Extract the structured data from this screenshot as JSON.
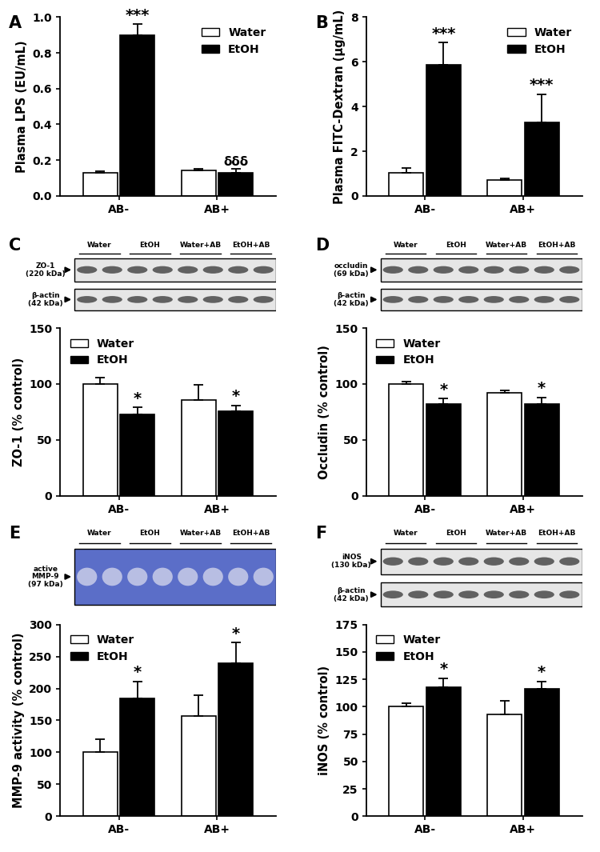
{
  "chart_data": [
    {
      "type": "bar",
      "title": "A",
      "categories": [
        "AB-",
        "AB+"
      ],
      "ylabel": "Plasma LPS (EU/mL)",
      "ylim": [
        0,
        1.0
      ],
      "yticks": [
        {
          "value": 0,
          "label": "0.0"
        },
        {
          "value": 0.2,
          "label": "0.2"
        },
        {
          "value": 0.4,
          "label": "0.4"
        },
        {
          "value": 0.6,
          "label": "0.6"
        },
        {
          "value": 0.8,
          "label": "0.8"
        },
        {
          "value": 1.0,
          "label": "1.0"
        }
      ],
      "legend": "upper right",
      "series": [
        {
          "name": "Water",
          "color": "#ffffff",
          "values": [
            0.13,
            0.145
          ],
          "errors": [
            0.01,
            0.005
          ]
        },
        {
          "name": "EtOH",
          "color": "#000000",
          "values": [
            0.9,
            0.13
          ],
          "errors": [
            0.06,
            0.02
          ]
        }
      ],
      "annotations": [
        {
          "text": "***",
          "series": "EtOH",
          "category": "AB-"
        },
        {
          "text": "δδδ",
          "series": "EtOH",
          "category": "AB+"
        }
      ]
    },
    {
      "type": "bar",
      "title": "B",
      "categories": [
        "AB-",
        "AB+"
      ],
      "ylabel": "Plasma FITC-Dextran (µg/mL)",
      "ylim": [
        0,
        8
      ],
      "yticks": [
        0,
        2,
        4,
        6,
        8
      ],
      "legend": "upper right",
      "series": [
        {
          "name": "Water",
          "color": "#ffffff",
          "values": [
            1.05,
            0.72
          ],
          "errors": [
            0.2,
            0.08
          ]
        },
        {
          "name": "EtOH",
          "color": "#000000",
          "values": [
            5.85,
            3.3
          ],
          "errors": [
            1.0,
            1.25
          ]
        }
      ],
      "annotations": [
        {
          "text": "***",
          "series": "EtOH",
          "category": "AB-"
        },
        {
          "text": "***",
          "series": "EtOH",
          "category": "AB+"
        }
      ]
    },
    {
      "type": "bar",
      "title": "C",
      "categories": [
        "AB-",
        "AB+"
      ],
      "ylabel": "ZO-1 (% control)",
      "ylim": [
        0,
        150
      ],
      "yticks": [
        0,
        50,
        100,
        150
      ],
      "legend": "upper left",
      "series": [
        {
          "name": "Water",
          "color": "#ffffff",
          "values": [
            100,
            86
          ],
          "errors": [
            6,
            13
          ]
        },
        {
          "name": "EtOH",
          "color": "#000000",
          "values": [
            73,
            76
          ],
          "errors": [
            6,
            5
          ]
        }
      ],
      "annotations": [
        {
          "text": "*",
          "series": "EtOH",
          "category": "AB-"
        },
        {
          "text": "*",
          "series": "EtOH",
          "category": "AB+"
        }
      ],
      "blot": {
        "lanes": [
          "Water",
          "EtOH",
          "Water+AB",
          "EtOH+AB"
        ],
        "bands": [
          {
            "name": "ZO-1",
            "size": "(220 kDa)"
          },
          {
            "name": "β-actin",
            "size": "(42 kDa)"
          }
        ]
      }
    },
    {
      "type": "bar",
      "title": "D",
      "categories": [
        "AB-",
        "AB+"
      ],
      "ylabel": "Occludin (% control)",
      "ylim": [
        0,
        150
      ],
      "yticks": [
        0,
        50,
        100,
        150
      ],
      "legend": "upper left",
      "series": [
        {
          "name": "Water",
          "color": "#ffffff",
          "values": [
            100,
            92
          ],
          "errors": [
            2,
            2
          ]
        },
        {
          "name": "EtOH",
          "color": "#000000",
          "values": [
            82,
            82
          ],
          "errors": [
            5,
            6
          ]
        }
      ],
      "annotations": [
        {
          "text": "*",
          "series": "EtOH",
          "category": "AB-"
        },
        {
          "text": "*",
          "series": "EtOH",
          "category": "AB+"
        }
      ],
      "blot": {
        "lanes": [
          "Water",
          "EtOH",
          "Water+AB",
          "EtOH+AB"
        ],
        "bands": [
          {
            "name": "occludin",
            "size": "(69 kDa)"
          },
          {
            "name": "β-actin",
            "size": "(42 kDa)"
          }
        ]
      }
    },
    {
      "type": "bar",
      "title": "E",
      "categories": [
        "AB-",
        "AB+"
      ],
      "ylabel": "MMP-9 activity (% control)",
      "ylim": [
        0,
        300
      ],
      "yticks": [
        0,
        50,
        100,
        150,
        200,
        250,
        300
      ],
      "legend": "upper left",
      "series": [
        {
          "name": "Water",
          "color": "#ffffff",
          "values": [
            100,
            157
          ],
          "errors": [
            20,
            33
          ]
        },
        {
          "name": "EtOH",
          "color": "#000000",
          "values": [
            184,
            240
          ],
          "errors": [
            27,
            32
          ]
        }
      ],
      "annotations": [
        {
          "text": "*",
          "series": "EtOH",
          "category": "AB-"
        },
        {
          "text": "*",
          "series": "EtOH",
          "category": "AB+"
        }
      ],
      "blot": {
        "lanes": [
          "Water",
          "EtOH",
          "Water+AB",
          "EtOH+AB"
        ],
        "bands": [
          {
            "name": "active MMP-9",
            "size": "(97 kDa)"
          }
        ]
      }
    },
    {
      "type": "bar",
      "title": "F",
      "categories": [
        "AB-",
        "AB+"
      ],
      "ylabel": "iNOS (% control)",
      "ylim": [
        0,
        175
      ],
      "yticks": [
        0,
        25,
        50,
        75,
        100,
        125,
        150,
        175
      ],
      "legend": "upper left",
      "series": [
        {
          "name": "Water",
          "color": "#ffffff",
          "values": [
            100,
            93
          ],
          "errors": [
            3,
            12
          ]
        },
        {
          "name": "EtOH",
          "color": "#000000",
          "values": [
            118,
            116
          ],
          "errors": [
            8,
            7
          ]
        }
      ],
      "annotations": [
        {
          "text": "*",
          "series": "EtOH",
          "category": "AB-"
        },
        {
          "text": "*",
          "series": "EtOH",
          "category": "AB+"
        }
      ],
      "blot": {
        "lanes": [
          "Water",
          "EtOH",
          "Water+AB",
          "EtOH+AB"
        ],
        "bands": [
          {
            "name": "iNOS",
            "size": "(130 kDa)"
          },
          {
            "name": "β-actin",
            "size": "(42 kDa)"
          }
        ]
      }
    }
  ]
}
